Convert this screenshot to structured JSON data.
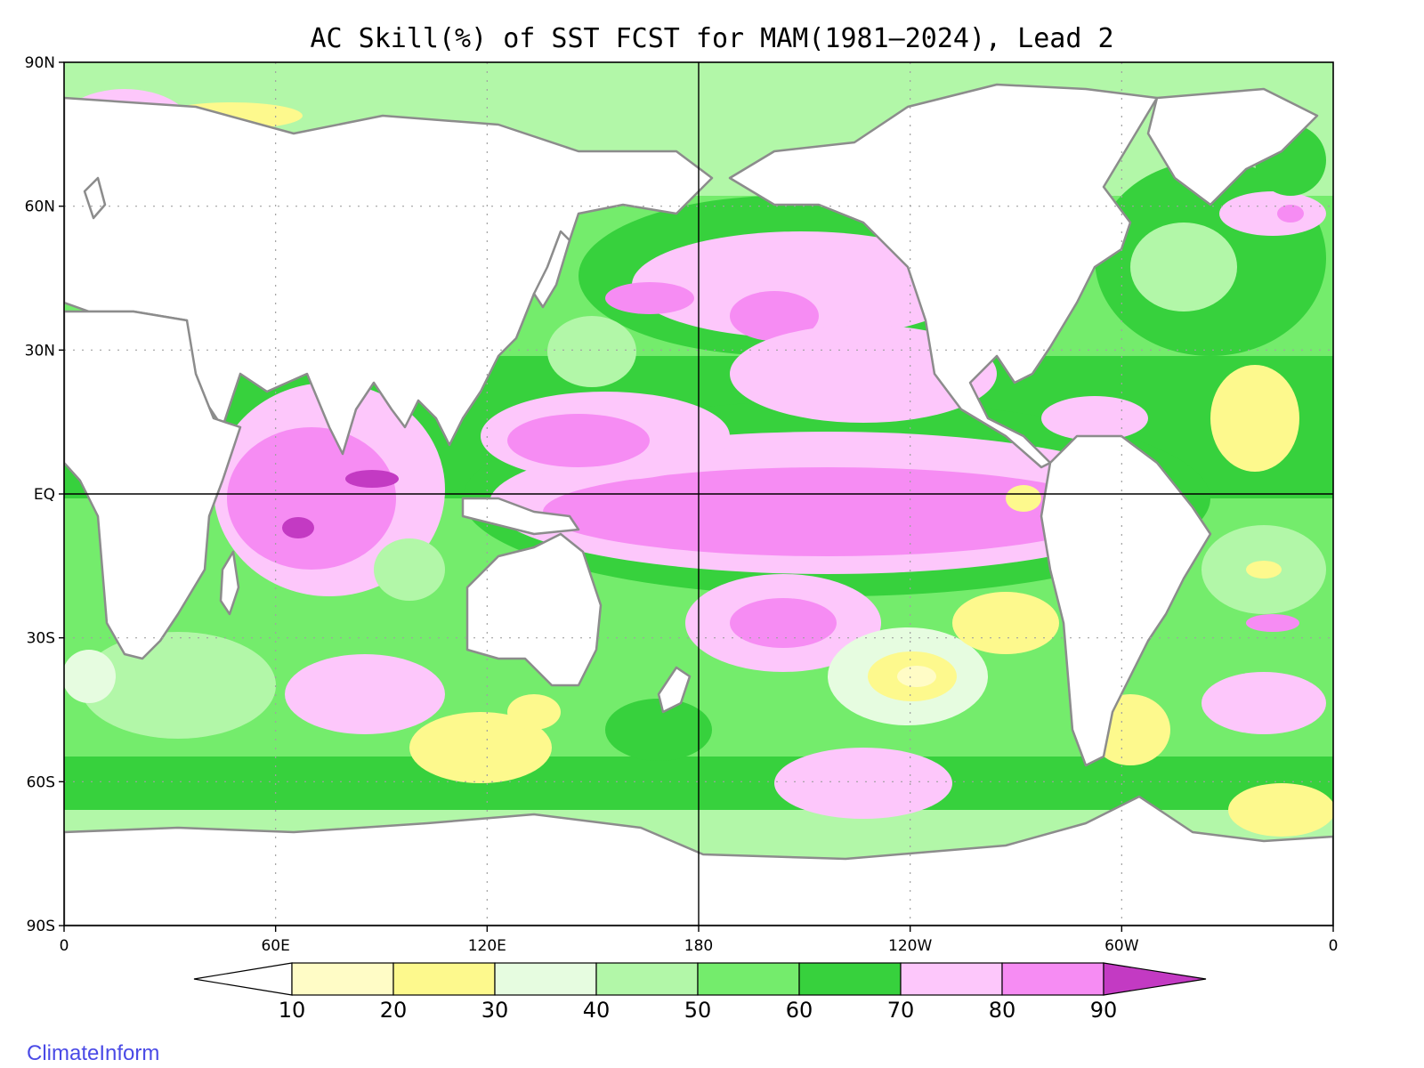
{
  "title": "AC Skill(%) of SST FCST for MAM(1981–2024), Lead 2",
  "credit": "ClimateInform",
  "map": {
    "lat_ticks": [
      {
        "lat": 90,
        "label": "90N"
      },
      {
        "lat": 60,
        "label": "60N"
      },
      {
        "lat": 30,
        "label": "30N"
      },
      {
        "lat": 0,
        "label": "EQ"
      },
      {
        "lat": -30,
        "label": "30S"
      },
      {
        "lat": -60,
        "label": "60S"
      },
      {
        "lat": -90,
        "label": "90S"
      }
    ],
    "lon_ticks": [
      {
        "lon": 0,
        "label": "0"
      },
      {
        "lon": 60,
        "label": "60E"
      },
      {
        "lon": 120,
        "label": "120E"
      },
      {
        "lon": 180,
        "label": "180"
      },
      {
        "lon": 240,
        "label": "120W"
      },
      {
        "lon": 300,
        "label": "60W"
      },
      {
        "lon": 360,
        "label": "0"
      }
    ],
    "colors": {
      "land": "#ffffff",
      "coast": "#8c8c8c",
      "lakes": "#000000"
    }
  },
  "legend": {
    "bins": [
      {
        "label": "",
        "color": "#ffffff"
      },
      {
        "label": "10",
        "color": "#fffcc6"
      },
      {
        "label": "20",
        "color": "#fdf98d"
      },
      {
        "label": "30",
        "color": "#e6fce0"
      },
      {
        "label": "40",
        "color": "#b2f7a8"
      },
      {
        "label": "50",
        "color": "#74ec6c"
      },
      {
        "label": "60",
        "color": "#37d13d"
      },
      {
        "label": "70",
        "color": "#fdc7fb"
      },
      {
        "label": "80",
        "color": "#f68cf3"
      },
      {
        "label": "90",
        "color": "#c33ac3"
      }
    ]
  }
}
